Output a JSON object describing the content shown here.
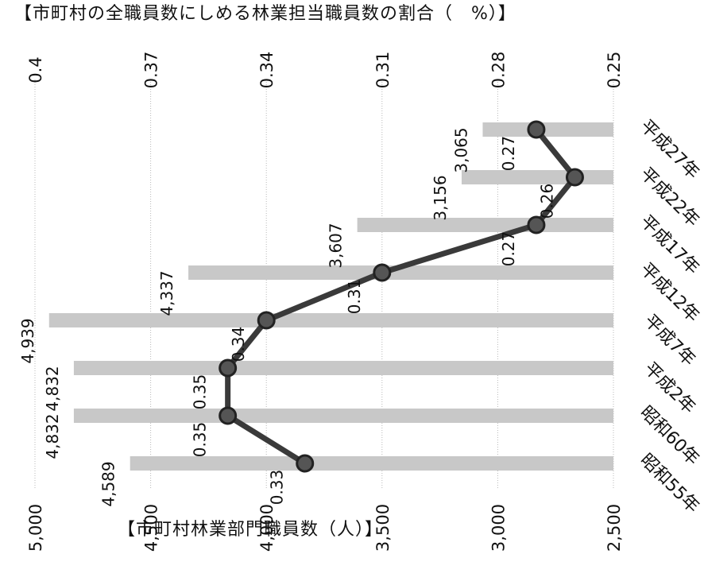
{
  "chart_data": {
    "type": "bar",
    "title_top": "【市町村の全職員数にしめる林業担当職員数の割合（　%）】",
    "title_left": "【市町村林業部門職員数（人）】",
    "categories": [
      "昭和55年",
      "昭和60年",
      "平成2年",
      "平成7年",
      "平成12年",
      "平成17年",
      "平成22年",
      "平成27年"
    ],
    "series": [
      {
        "kind": "bar",
        "values": [
          4589,
          4832,
          4832,
          4939,
          4337,
          3607,
          3156,
          3065
        ],
        "labels": [
          "4,589",
          "4,832",
          "4,832",
          "4,939",
          "4,337",
          "3,607",
          "3,156",
          "3,065"
        ],
        "color": "#c8c8c8"
      },
      {
        "kind": "line",
        "values": [
          0.33,
          0.35,
          0.35,
          0.34,
          0.31,
          0.27,
          0.26,
          0.27
        ],
        "labels": [
          "0.33",
          "0.35",
          "0.35",
          "0.34",
          "0.31",
          "0.27",
          "0.26",
          "0.27"
        ],
        "color": "#3a3a3a"
      }
    ],
    "primary_axis": {
      "range": [
        2500,
        5000
      ],
      "ticks": [
        5000,
        4500,
        4000,
        3500,
        3000,
        2500
      ],
      "tick_labels": [
        "5,000",
        "4,500",
        "4,000",
        "3,500",
        "3,000",
        "2,500"
      ]
    },
    "secondary_axis": {
      "range": [
        0.25,
        0.4
      ],
      "ticks": [
        0.4,
        0.37,
        0.34,
        0.31,
        0.28,
        0.25
      ],
      "tick_labels": [
        "0.4",
        "0.37",
        "0.34",
        "0.31",
        "0.28",
        "0.25"
      ]
    },
    "orientation": "rotated 90° clockwise",
    "grid": true,
    "legend": "none"
  }
}
